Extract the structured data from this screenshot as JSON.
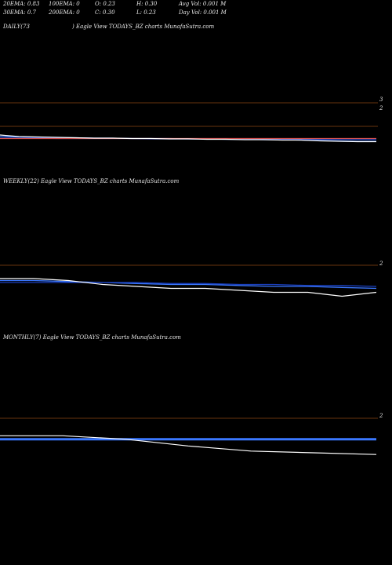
{
  "header": {
    "row1": [
      "20EMA: 0.83",
      "100EMA: 0",
      "O: 0.23",
      "H: 0.30",
      "Avg Vol: 0.001 M"
    ],
    "row2": [
      "30EMA: 0.7",
      "200EMA: 0",
      "C: 0.30",
      "L: 0.23",
      "Day Vol: 0.001 M"
    ]
  },
  "panels": {
    "daily": {
      "period": "DAILY(73",
      "caption": ") Eagle   View  TODAYS_BZ charts MunafaSutra.com",
      "ticks": [
        "3",
        "2"
      ]
    },
    "weekly": {
      "caption": "WEEKLY(22) Eagle   View  TODAYS_BZ charts MunafaSutra.com",
      "ticks": [
        "2"
      ]
    },
    "monthly": {
      "caption": "MONTHLY(7) Eagle   View  TODAYS_BZ charts MunafaSutra.com",
      "ticks": [
        "2"
      ]
    }
  },
  "colors": {
    "background": "#000000",
    "price": "#ffffff",
    "ema_blue": "#3b78ff",
    "ema_dark": "#1a3fbf",
    "ema_red": "#d05050",
    "grid": "#8b4513"
  },
  "chart_data": [
    {
      "type": "line",
      "title": "DAILY(73",
      "ylim": [
        1.9,
        3.1
      ],
      "ticks": [
        3,
        2
      ],
      "series": [
        {
          "values": [
            2.02,
            2.01,
            2.0,
            1.99,
            1.99,
            1.98,
            1.98,
            1.97,
            1.97,
            1.97,
            1.96,
            1.96,
            1.95,
            1.95,
            1.94,
            1.94,
            1.93,
            1.92,
            1.91,
            1.9,
            1.9
          ]
        },
        {
          "values": [
            1.98,
            1.98,
            1.98,
            1.97,
            1.97,
            1.97,
            1.97,
            1.97,
            1.96,
            1.96,
            1.96,
            1.96,
            1.96,
            1.96,
            1.95,
            1.95,
            1.95,
            1.95,
            1.95,
            1.95,
            1.95
          ]
        },
        {
          "values": [
            1.97,
            1.97,
            1.97,
            1.97,
            1.97,
            1.97,
            1.97,
            1.97,
            1.97,
            1.97,
            1.97,
            1.97,
            1.97,
            1.97,
            1.97,
            1.97,
            1.97,
            1.97,
            1.97,
            1.97,
            1.97
          ]
        },
        {
          "values": [
            2.06,
            2.02,
            2.01,
            2.0,
            1.99,
            1.98,
            1.98,
            1.97,
            1.97,
            1.96,
            1.96,
            1.95,
            1.95,
            1.94,
            1.94,
            1.93,
            1.93,
            1.91,
            1.9,
            1.89,
            1.89
          ]
        }
      ]
    },
    {
      "type": "line",
      "title": "WEEKLY(22)",
      "ylim": [
        1.9,
        2.1
      ],
      "ticks": [
        2
      ],
      "series": [
        {
          "values": [
            1.99,
            1.99,
            1.985,
            1.98,
            1.975,
            1.97,
            1.97,
            1.965,
            1.96,
            1.96,
            1.955,
            1.95
          ]
        },
        {
          "values": [
            1.98,
            1.98,
            1.98,
            1.98,
            1.98,
            1.975,
            1.975,
            1.97,
            1.97,
            1.965,
            1.965,
            1.96
          ]
        },
        {
          "values": [
            2.0,
            2.0,
            1.99,
            1.97,
            1.96,
            1.95,
            1.95,
            1.94,
            1.93,
            1.93,
            1.91,
            1.93
          ]
        }
      ]
    },
    {
      "type": "line",
      "title": "MONTHLY(7)",
      "ylim": [
        1.8,
        2.1
      ],
      "ticks": [
        2
      ],
      "series": [
        {
          "values": [
            1.94,
            1.94,
            1.94,
            1.94,
            1.94,
            1.94,
            1.94
          ]
        },
        {
          "values": [
            1.96,
            1.96,
            1.94,
            1.9,
            1.87,
            1.86,
            1.85
          ]
        }
      ]
    }
  ]
}
